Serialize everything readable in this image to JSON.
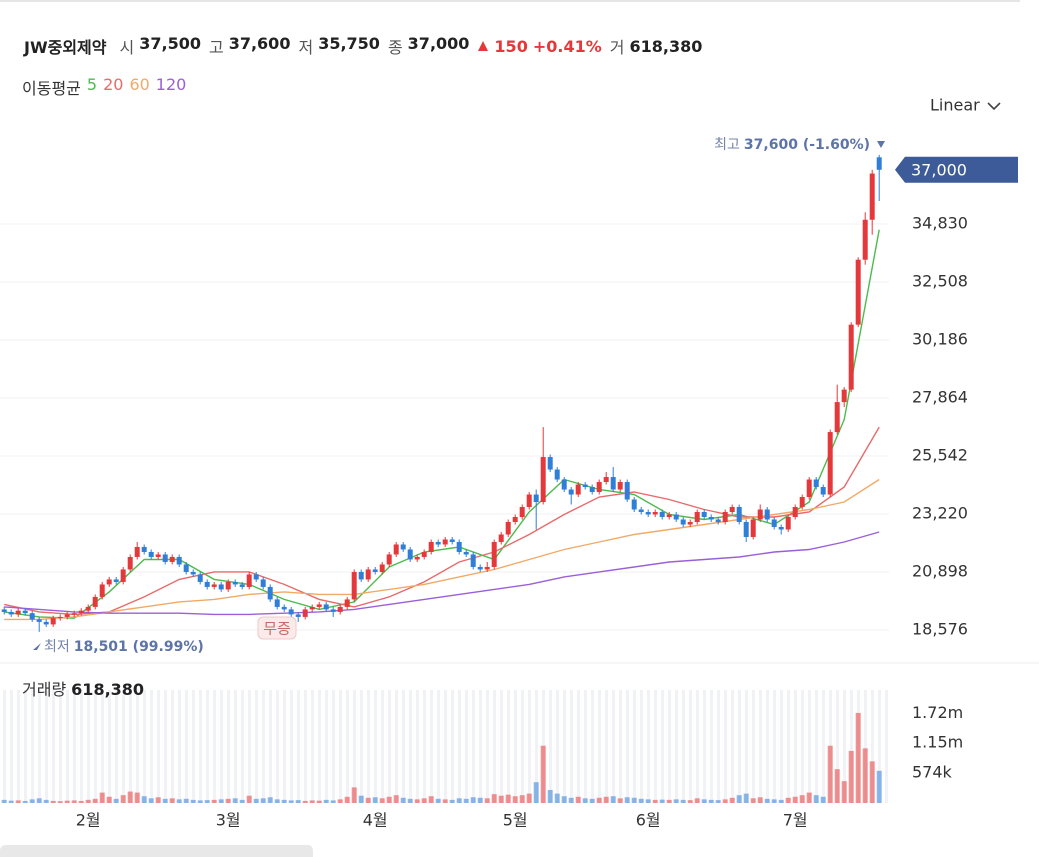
{
  "chart_data": {
    "type": "candlestick",
    "title": "JW중외제약",
    "quote": [
      {
        "label": "시",
        "value": "37,500"
      },
      {
        "label": "고",
        "value": "37,600"
      },
      {
        "label": "저",
        "value": "35,750"
      },
      {
        "label": "종",
        "value": "37,000"
      }
    ],
    "change": "150",
    "change_pct": "+0.41%",
    "volume_quote": {
      "label": "거",
      "value": "618,380"
    },
    "ma_title": "이동평균",
    "scale_mode": "Linear",
    "high_note": {
      "label": "최고",
      "value": "37,600 (-1.60%)"
    },
    "low_note": {
      "label": "최저",
      "value": "18,501 (99.99%)"
    },
    "split_badge": "무증",
    "last_price": {
      "value": 37000,
      "label": "37,000"
    },
    "up_color": "#e5383b",
    "down_color": "#2f7ed8",
    "xlim": [
      -0.6,
      126.4
    ],
    "xticks": [
      {
        "value": 12,
        "label": "2월"
      },
      {
        "value": 32,
        "label": "3월"
      },
      {
        "value": 53,
        "label": "4월"
      },
      {
        "value": 73,
        "label": "5월"
      },
      {
        "value": 92,
        "label": "6월"
      },
      {
        "value": 113,
        "label": "7월"
      }
    ],
    "ylim": [
      17375,
      38593
    ],
    "yticks": [
      {
        "value": 18576,
        "label": "18,576"
      },
      {
        "value": 20898,
        "label": "20,898"
      },
      {
        "value": 23220,
        "label": "23,220"
      },
      {
        "value": 25542,
        "label": "25,542"
      },
      {
        "value": 27864,
        "label": "27,864"
      },
      {
        "value": 30186,
        "label": "30,186"
      },
      {
        "value": 32508,
        "label": "32,508"
      },
      {
        "value": 34830,
        "label": "34,830"
      }
    ],
    "grid": true,
    "candles": [
      [
        19400,
        19500,
        19200,
        19300
      ],
      [
        19300,
        19400,
        19100,
        19200
      ],
      [
        19200,
        19450,
        19100,
        19350
      ],
      [
        19350,
        19450,
        19150,
        19250
      ],
      [
        19250,
        19350,
        18900,
        19000
      ],
      [
        19000,
        19100,
        18501,
        18900
      ],
      [
        18900,
        19000,
        18700,
        18800
      ],
      [
        18800,
        19150,
        18700,
        19050
      ],
      [
        19050,
        19200,
        18950,
        19100
      ],
      [
        19100,
        19300,
        19000,
        19200
      ],
      [
        19200,
        19350,
        19100,
        19250
      ],
      [
        19250,
        19450,
        19150,
        19350
      ],
      [
        19350,
        19600,
        19250,
        19500
      ],
      [
        19500,
        20000,
        19400,
        19900
      ],
      [
        19900,
        20500,
        19800,
        20400
      ],
      [
        20400,
        20700,
        20300,
        20600
      ],
      [
        20600,
        20700,
        20400,
        20500
      ],
      [
        20500,
        21100,
        20400,
        21000
      ],
      [
        21000,
        21600,
        20900,
        21500
      ],
      [
        21500,
        22100,
        21400,
        21900
      ],
      [
        21900,
        22000,
        21600,
        21700
      ],
      [
        21700,
        21800,
        21400,
        21500
      ],
      [
        21500,
        21700,
        21400,
        21600
      ],
      [
        21600,
        21700,
        21200,
        21300
      ],
      [
        21300,
        21600,
        21200,
        21500
      ],
      [
        21500,
        21600,
        21100,
        21200
      ],
      [
        21200,
        21300,
        20800,
        20900
      ],
      [
        20900,
        21000,
        20700,
        20800
      ],
      [
        20800,
        20900,
        20400,
        20500
      ],
      [
        20500,
        20600,
        20200,
        20300
      ],
      [
        20300,
        20500,
        20200,
        20400
      ],
      [
        20400,
        20500,
        20100,
        20200
      ],
      [
        20200,
        20600,
        20100,
        20500
      ],
      [
        20500,
        20600,
        20300,
        20400
      ],
      [
        20400,
        20500,
        20200,
        20300
      ],
      [
        20300,
        20900,
        20200,
        20800
      ],
      [
        20800,
        20900,
        20500,
        20600
      ],
      [
        20600,
        20700,
        20200,
        20300
      ],
      [
        20300,
        20400,
        19700,
        19800
      ],
      [
        19800,
        19900,
        19400,
        19500
      ],
      [
        19500,
        19600,
        19300,
        19400
      ],
      [
        19400,
        19500,
        19100,
        19200
      ],
      [
        19200,
        19300,
        18900,
        19100
      ],
      [
        19100,
        19500,
        19000,
        19400
      ],
      [
        19400,
        19600,
        19300,
        19500
      ],
      [
        19500,
        19700,
        19400,
        19600
      ],
      [
        19600,
        19700,
        19300,
        19400
      ],
      [
        19400,
        19500,
        19100,
        19300
      ],
      [
        19300,
        19600,
        19200,
        19500
      ],
      [
        19500,
        19900,
        19400,
        19800
      ],
      [
        19800,
        21000,
        19700,
        20900
      ],
      [
        20900,
        21000,
        20500,
        20600
      ],
      [
        20600,
        21100,
        20500,
        21000
      ],
      [
        21000,
        21100,
        20800,
        20900
      ],
      [
        20900,
        21300,
        20800,
        21200
      ],
      [
        21200,
        21700,
        21100,
        21600
      ],
      [
        21600,
        22100,
        21500,
        22000
      ],
      [
        22000,
        22100,
        21700,
        21800
      ],
      [
        21800,
        21900,
        21300,
        21400
      ],
      [
        21400,
        21600,
        21300,
        21500
      ],
      [
        21500,
        21800,
        21400,
        21700
      ],
      [
        21700,
        22200,
        21600,
        22100
      ],
      [
        22100,
        22200,
        21900,
        22000
      ],
      [
        22000,
        22300,
        21900,
        22200
      ],
      [
        22200,
        22300,
        22000,
        22100
      ],
      [
        22100,
        22200,
        21600,
        21700
      ],
      [
        21700,
        21800,
        21500,
        21600
      ],
      [
        21600,
        21700,
        21000,
        21100
      ],
      [
        21100,
        21200,
        20900,
        21000
      ],
      [
        21000,
        21300,
        20900,
        21100
      ],
      [
        21100,
        22200,
        21000,
        22100
      ],
      [
        22100,
        22500,
        22000,
        22400
      ],
      [
        22400,
        23000,
        22300,
        22900
      ],
      [
        22900,
        23200,
        22800,
        23100
      ],
      [
        23100,
        23600,
        23000,
        23500
      ],
      [
        23500,
        24100,
        23400,
        24000
      ],
      [
        24000,
        24200,
        22600,
        23700
      ],
      [
        23700,
        26700,
        23600,
        25500
      ],
      [
        25500,
        25600,
        24900,
        25000
      ],
      [
        25000,
        25100,
        24500,
        24600
      ],
      [
        24600,
        24700,
        24100,
        24200
      ],
      [
        24200,
        24300,
        23600,
        24000
      ],
      [
        24000,
        24500,
        23900,
        24400
      ],
      [
        24400,
        24500,
        24200,
        24300
      ],
      [
        24300,
        24400,
        24000,
        24100
      ],
      [
        24100,
        24600,
        24000,
        24500
      ],
      [
        24500,
        24900,
        24400,
        24700
      ],
      [
        24700,
        25100,
        24100,
        24200
      ],
      [
        24200,
        24600,
        24100,
        24500
      ],
      [
        24500,
        24600,
        23700,
        23800
      ],
      [
        23800,
        23900,
        23300,
        23400
      ],
      [
        23400,
        23500,
        23200,
        23300
      ],
      [
        23300,
        23400,
        23100,
        23200
      ],
      [
        23200,
        23400,
        23100,
        23300
      ],
      [
        23300,
        23400,
        23000,
        23100
      ],
      [
        23100,
        23300,
        23000,
        23200
      ],
      [
        23200,
        23300,
        22900,
        23000
      ],
      [
        23000,
        23100,
        22700,
        22800
      ],
      [
        22800,
        23000,
        22700,
        22900
      ],
      [
        22900,
        23400,
        22800,
        23300
      ],
      [
        23300,
        23400,
        23000,
        23100
      ],
      [
        23100,
        23200,
        22900,
        23000
      ],
      [
        23000,
        23100,
        22800,
        22900
      ],
      [
        22900,
        23400,
        22800,
        23300
      ],
      [
        23300,
        23600,
        23200,
        23500
      ],
      [
        23500,
        23600,
        22800,
        22900
      ],
      [
        22900,
        23000,
        22100,
        22300
      ],
      [
        22300,
        23100,
        22200,
        23000
      ],
      [
        23000,
        23600,
        22900,
        23400
      ],
      [
        23400,
        23500,
        22900,
        23000
      ],
      [
        23000,
        23100,
        22600,
        22700
      ],
      [
        22700,
        22800,
        22400,
        22600
      ],
      [
        22600,
        23200,
        22500,
        23100
      ],
      [
        23100,
        23600,
        23000,
        23500
      ],
      [
        23500,
        24000,
        23400,
        23900
      ],
      [
        23900,
        24700,
        23800,
        24600
      ],
      [
        24600,
        24700,
        24200,
        24300
      ],
      [
        24300,
        24400,
        23900,
        24000
      ],
      [
        24000,
        26600,
        23900,
        26500
      ],
      [
        26500,
        28400,
        26400,
        27700
      ],
      [
        27700,
        28300,
        27500,
        28200
      ],
      [
        28200,
        30900,
        28100,
        30800
      ],
      [
        30800,
        33500,
        30700,
        33400
      ],
      [
        33400,
        35300,
        33200,
        35000
      ],
      [
        35000,
        37000,
        34400,
        36850
      ],
      [
        37500,
        37600,
        35750,
        37000
      ]
    ],
    "volume_title": "거래량",
    "volume_value": "618,380",
    "volumes": [
      60000,
      45000,
      50000,
      40000,
      70000,
      90000,
      60000,
      40000,
      35000,
      45000,
      50000,
      40000,
      60000,
      80000,
      200000,
      120000,
      80000,
      150000,
      220000,
      200000,
      130000,
      90000,
      110000,
      80000,
      90000,
      70000,
      80000,
      60000,
      50000,
      55000,
      60000,
      70000,
      80000,
      90000,
      60000,
      140000,
      80000,
      90000,
      110000,
      70000,
      60000,
      50000,
      55000,
      40000,
      50000,
      45000,
      60000,
      50000,
      70000,
      120000,
      300000,
      140000,
      100000,
      110000,
      90000,
      120000,
      150000,
      100000,
      80000,
      70000,
      90000,
      130000,
      80000,
      70000,
      60000,
      90000,
      80000,
      110000,
      100000,
      90000,
      170000,
      140000,
      160000,
      130000,
      150000,
      180000,
      400000,
      1100000,
      250000,
      180000,
      130000,
      100000,
      120000,
      90000,
      80000,
      100000,
      120000,
      130000,
      90000,
      110000,
      100000,
      80000,
      70000,
      60000,
      65000,
      60000,
      70000,
      60000,
      55000,
      90000,
      70000,
      60000,
      55000,
      70000,
      100000,
      150000,
      180000,
      90000,
      110000,
      80000,
      70000,
      60000,
      100000,
      120000,
      150000,
      200000,
      150000,
      120000,
      1100000,
      650000,
      420000,
      1000000,
      1730000,
      1050000,
      800000,
      618380
    ],
    "volume_ylim": [
      0,
      2170000
    ],
    "volume_yticks": [
      {
        "value": 574000,
        "label": "574k"
      },
      {
        "value": 1150000,
        "label": "1.15m"
      },
      {
        "value": 1720000,
        "label": "1.72m"
      }
    ],
    "ma_x": [
      0,
      5,
      10,
      15,
      20,
      25,
      30,
      35,
      40,
      45,
      50,
      55,
      60,
      65,
      70,
      75,
      80,
      85,
      90,
      95,
      100,
      105,
      110,
      115,
      120,
      125
    ],
    "series": [
      {
        "name": "5",
        "color": "#4cbb4c",
        "values": [
          19300,
          19100,
          19050,
          20100,
          21400,
          21400,
          20600,
          20400,
          19800,
          19400,
          19700,
          21100,
          21700,
          21900,
          21400,
          23300,
          24600,
          24200,
          24000,
          23200,
          23000,
          23200,
          22800,
          23700,
          27000,
          34600
        ]
      },
      {
        "name": "20",
        "color": "#e86a6a",
        "values": [
          19600,
          19300,
          19200,
          19300,
          19900,
          20600,
          20900,
          20900,
          20400,
          19800,
          19500,
          19900,
          20500,
          21300,
          21700,
          22400,
          23200,
          23900,
          24100,
          23800,
          23400,
          23100,
          23100,
          23300,
          24300,
          26700
        ]
      },
      {
        "name": "60",
        "color": "#f0aa66",
        "values": [
          19000,
          19000,
          19100,
          19300,
          19500,
          19700,
          19800,
          20000,
          20100,
          20000,
          20000,
          20200,
          20400,
          20700,
          21000,
          21400,
          21800,
          22100,
          22400,
          22600,
          22800,
          23000,
          23200,
          23400,
          23700,
          24600
        ]
      },
      {
        "name": "120",
        "color": "#9b5fd8",
        "values": [
          19500,
          19400,
          19300,
          19250,
          19250,
          19250,
          19200,
          19200,
          19250,
          19300,
          19400,
          19600,
          19800,
          20000,
          20200,
          20400,
          20700,
          20900,
          21100,
          21300,
          21400,
          21500,
          21700,
          21800,
          22100,
          22500
        ]
      }
    ]
  }
}
